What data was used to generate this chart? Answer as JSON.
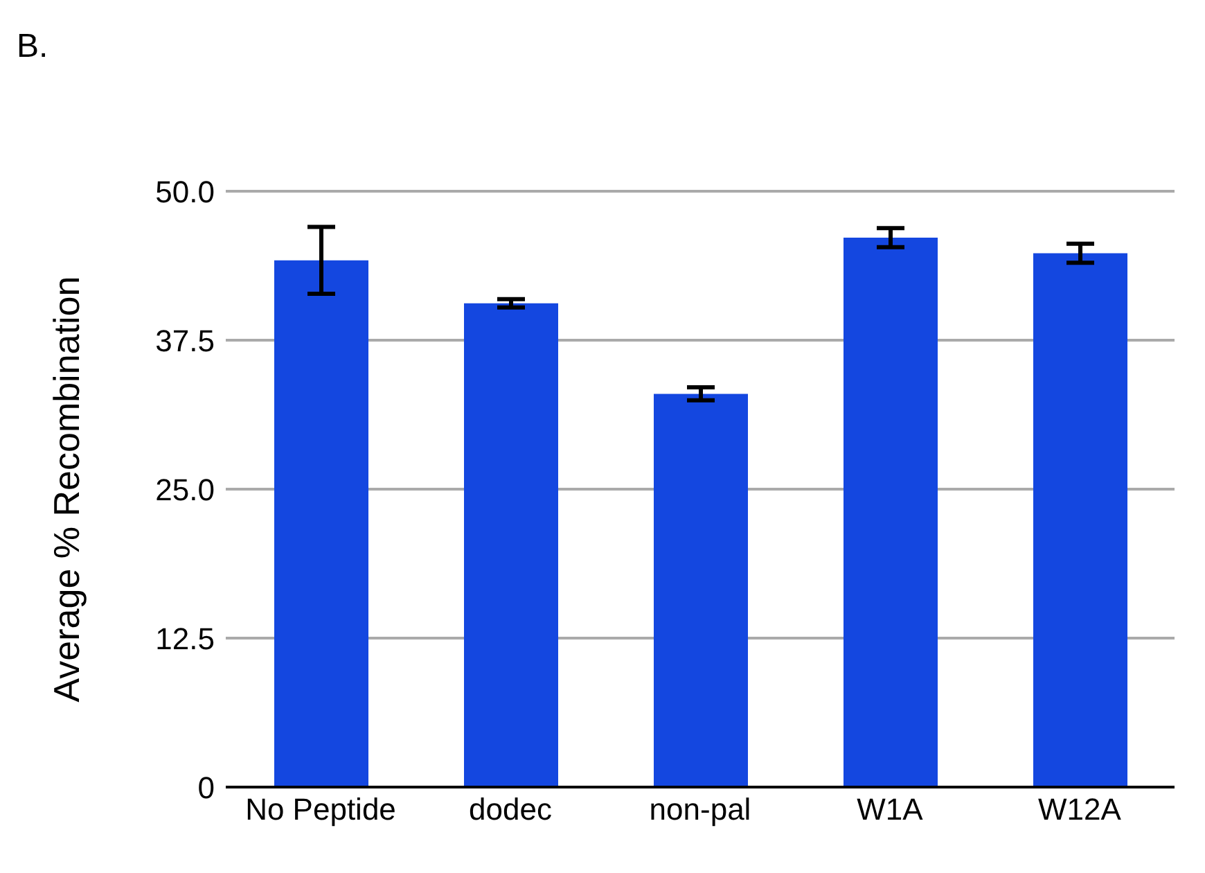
{
  "chart_data": {
    "type": "bar",
    "title": "B.",
    "ylabel": "Average % Recombination",
    "categories": [
      "No Peptide",
      "dodec",
      "non-pal",
      "W1A",
      "W12A"
    ],
    "values": [
      44.2,
      40.6,
      33.0,
      46.1,
      44.8
    ],
    "errors": [
      2.8,
      0.35,
      0.55,
      0.8,
      0.8
    ],
    "color": "#1447e0",
    "ylim": [
      0,
      50
    ],
    "yticks": [
      {
        "value": 0,
        "label": "0"
      },
      {
        "value": 12.5,
        "label": "12.5"
      },
      {
        "value": 25,
        "label": "25.0"
      },
      {
        "value": 37.5,
        "label": "37.5"
      },
      {
        "value": 50,
        "label": "50.0"
      }
    ],
    "grid": "y"
  }
}
